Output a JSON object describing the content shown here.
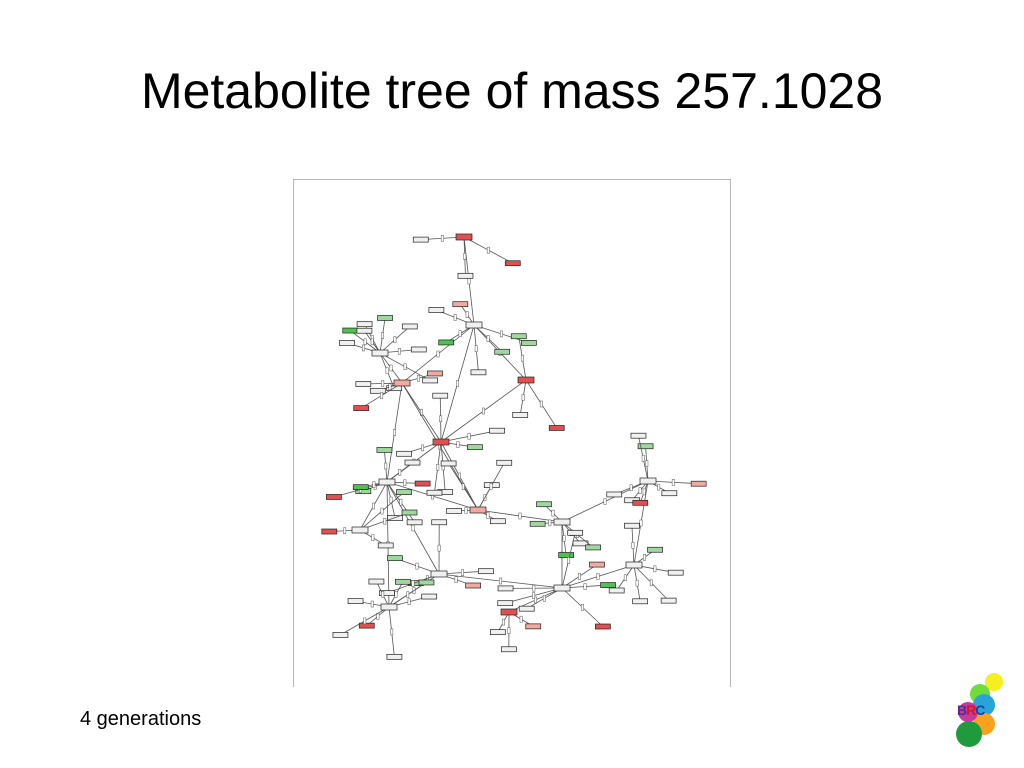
{
  "title": "Metabolite tree of mass 257.1028",
  "caption": "4 generations",
  "logo": {
    "letters": [
      "B",
      "R",
      "C"
    ],
    "letter_colors": [
      "#5a2a8a",
      "#d31a1a",
      "#1a3fa8"
    ]
  },
  "colors": {
    "node_default": "#f0f0f0",
    "node_red": "#e05050",
    "node_pink": "#f1a9a0",
    "node_green": "#9fd89f",
    "node_bright_green": "#4dc24d",
    "edge": "#555555",
    "logo_yellow": "#f6ef1f",
    "logo_green_light": "#6fdc3c",
    "logo_blue": "#29a4d8",
    "logo_orange": "#f7a11f",
    "logo_green_dark": "#1f9a3c"
  }
}
